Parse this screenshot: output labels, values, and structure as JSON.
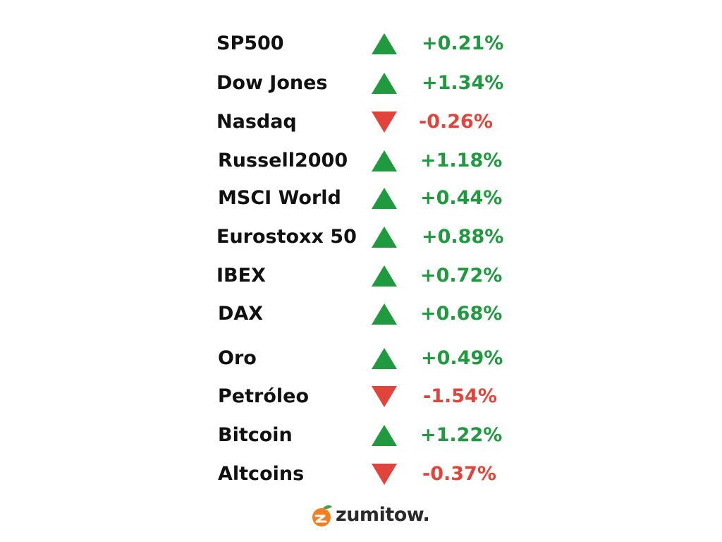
{
  "rows": [
    {
      "name": "SP500",
      "direction": "up",
      "change": "+0.21%"
    },
    {
      "name": "Dow Jones",
      "direction": "up",
      "change": "+1.34%"
    },
    {
      "name": "Nasdaq",
      "direction": "down",
      "change": "-0.26%"
    },
    {
      "name": "Russell2000",
      "direction": "up",
      "change": "+1.18%"
    },
    {
      "name": "MSCI World",
      "direction": "up",
      "change": "+0.44%"
    },
    {
      "name": "Eurostoxx 50",
      "direction": "up",
      "change": "+0.88%"
    },
    {
      "name": "IBEX",
      "direction": "up",
      "change": "+0.72%"
    },
    {
      "name": "DAX",
      "direction": "up",
      "change": "+0.68%"
    },
    {
      "name": "Oro",
      "direction": "up",
      "change": "+0.49%"
    },
    {
      "name": "Petróleo",
      "direction": "down",
      "change": "-1.54%"
    },
    {
      "name": "Bitcoin",
      "direction": "up",
      "change": "+1.22%"
    },
    {
      "name": "Altcoins",
      "direction": "down",
      "change": "-0.37%"
    }
  ],
  "colors": {
    "up": "#1f9a3e",
    "down": "#e0443a",
    "logo_orange": "#f07f22",
    "logo_leaf": "#3aa845"
  },
  "logo": {
    "text": "zumitow.",
    "icon": "orange-fruit-icon"
  }
}
